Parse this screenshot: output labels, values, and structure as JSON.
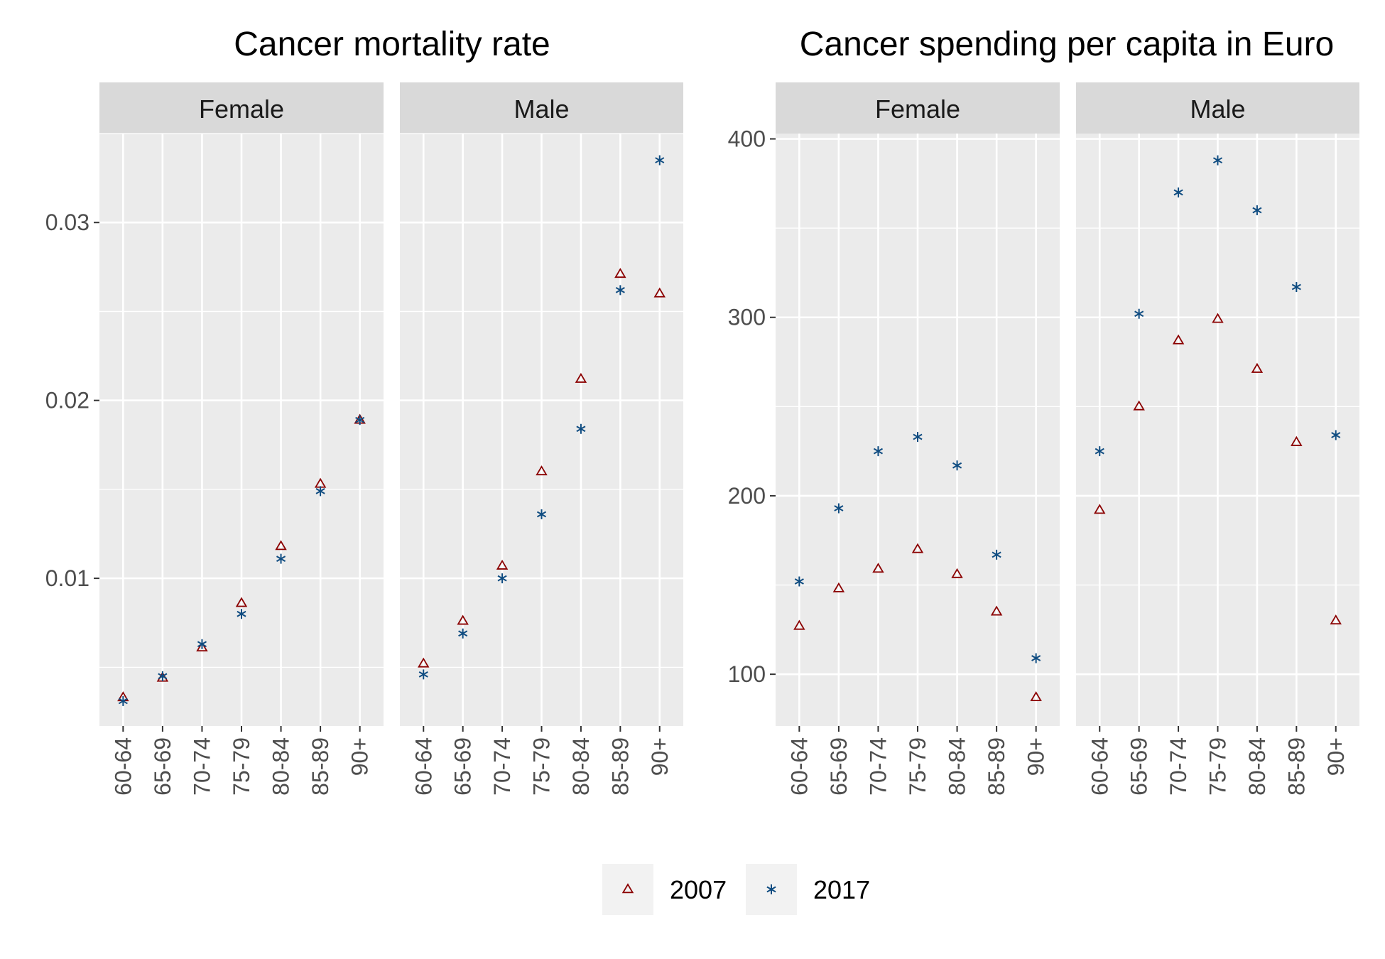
{
  "colors": {
    "panel_bg": "#EBEBEB",
    "strip_bg": "#D9D9D9",
    "grid": "#FFFFFF",
    "tick": "#333333",
    "series_2007": "#8B0000",
    "series_2017": "#0F4C81"
  },
  "legend": {
    "position": "bottom",
    "items": [
      {
        "label": "2007",
        "marker": "triangle-open"
      },
      {
        "label": "2017",
        "marker": "asterisk"
      }
    ]
  },
  "chart_data": [
    {
      "type": "scatter",
      "title": "Cancer mortality rate",
      "facets": [
        "Female",
        "Male"
      ],
      "categories": [
        "60-64",
        "65-69",
        "70-74",
        "75-79",
        "80-84",
        "85-89",
        "90+"
      ],
      "yticks": [
        "0.01",
        "0.02",
        "0.03"
      ],
      "ylim": [
        0.0017,
        0.035
      ],
      "grid": true,
      "series": [
        {
          "name": "2007",
          "marker": "triangle-open",
          "values": {
            "Female": [
              0.0033,
              0.0044,
              0.0061,
              0.0086,
              0.0118,
              0.0153,
              0.0189
            ],
            "Male": [
              0.0052,
              0.0076,
              0.0107,
              0.016,
              0.0212,
              0.0271,
              0.026
            ]
          }
        },
        {
          "name": "2017",
          "marker": "asterisk",
          "values": {
            "Female": [
              0.0031,
              0.0045,
              0.0063,
              0.008,
              0.0111,
              0.0149,
              0.0189
            ],
            "Male": [
              0.0046,
              0.0069,
              0.01,
              0.0136,
              0.0184,
              0.0262,
              0.0335
            ]
          }
        }
      ]
    },
    {
      "type": "scatter",
      "title": "Cancer spending per capita in Euro",
      "facets": [
        "Female",
        "Male"
      ],
      "categories": [
        "60-64",
        "65-69",
        "70-74",
        "75-79",
        "80-84",
        "85-89",
        "90+"
      ],
      "yticks": [
        "100",
        "200",
        "300",
        "400"
      ],
      "ylim": [
        71,
        403
      ],
      "grid": true,
      "series": [
        {
          "name": "2007",
          "marker": "triangle-open",
          "values": {
            "Female": [
              127,
              148,
              159,
              170,
              156,
              135,
              87
            ],
            "Male": [
              192,
              250,
              287,
              299,
              271,
              230,
              130
            ]
          }
        },
        {
          "name": "2017",
          "marker": "asterisk",
          "values": {
            "Female": [
              152,
              193,
              225,
              233,
              217,
              167,
              109
            ],
            "Male": [
              225,
              302,
              370,
              388,
              360,
              317,
              234
            ]
          }
        }
      ]
    }
  ]
}
